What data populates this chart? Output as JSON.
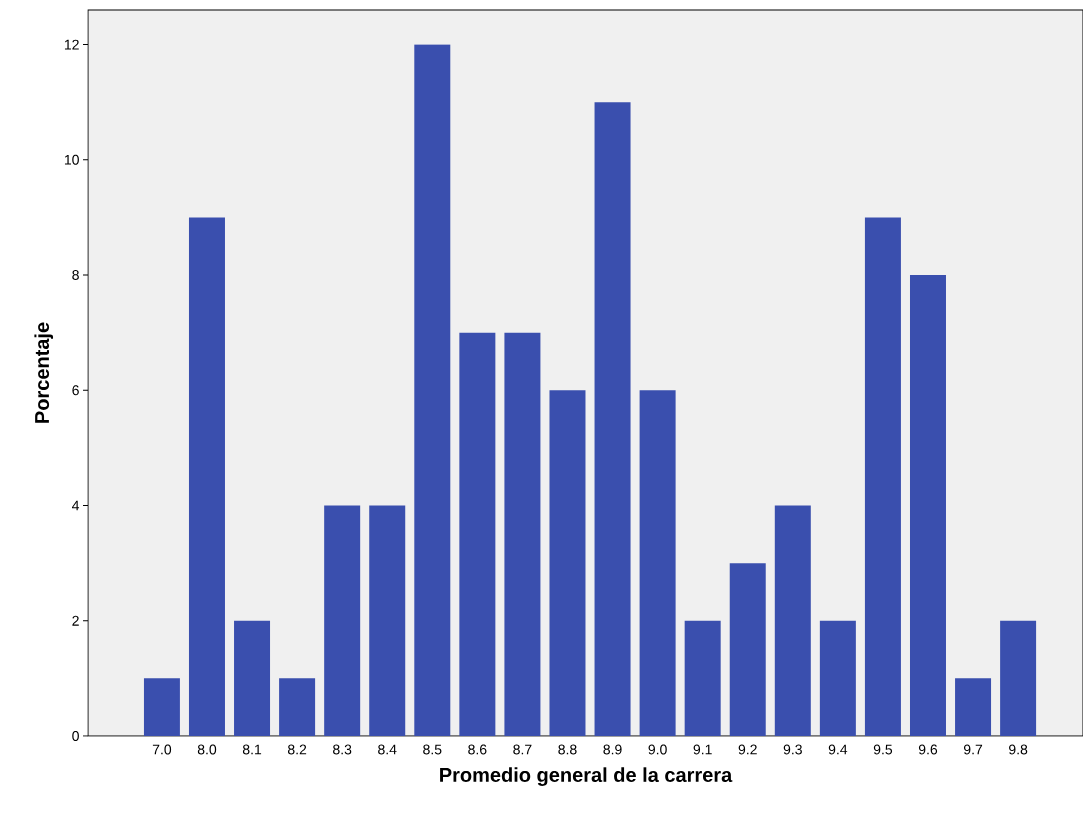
{
  "chart_data": {
    "type": "bar",
    "xlabel": "Promedio general de la carrera",
    "ylabel": "Porcentaje",
    "categories": [
      "7.0",
      "8.0",
      "8.1",
      "8.2",
      "8.3",
      "8.4",
      "8.5",
      "8.6",
      "8.7",
      "8.8",
      "8.9",
      "9.0",
      "9.1",
      "9.2",
      "9.3",
      "9.4",
      "9.5",
      "9.6",
      "9.7",
      "9.8"
    ],
    "values": [
      1,
      9,
      2,
      1,
      4,
      4,
      12,
      7,
      7,
      6,
      11,
      6,
      2,
      3,
      4,
      2,
      9,
      8,
      1,
      2
    ],
    "color": "#3a4fae",
    "ylim": [
      0,
      12.6
    ],
    "yticks": [
      0,
      2,
      4,
      6,
      8,
      10,
      12
    ]
  }
}
